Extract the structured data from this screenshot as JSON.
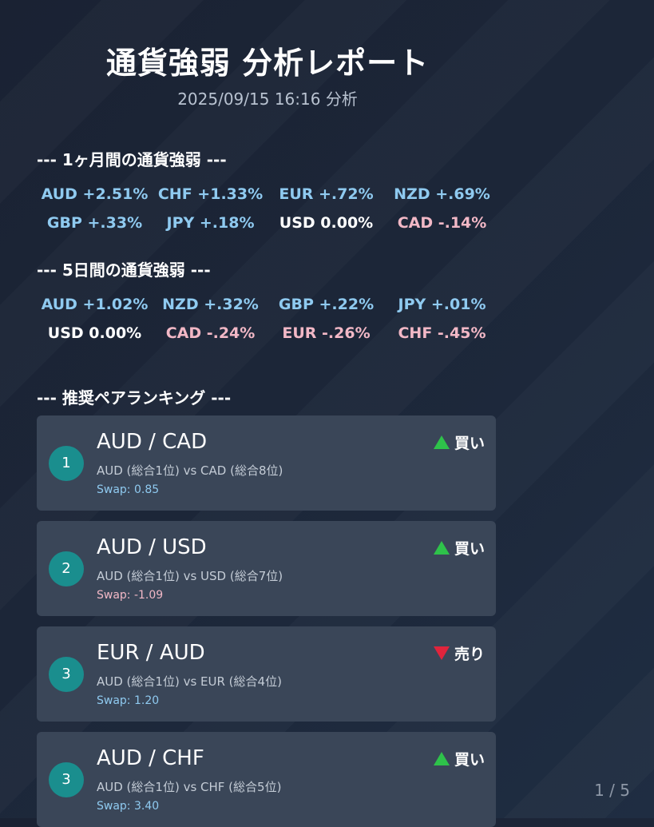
{
  "header": {
    "title": "通貨強弱 分析レポート",
    "timestamp": "2025/09/15 16:16 分析"
  },
  "strength_1m": {
    "heading": "--- 1ヶ月間の通貨強弱 ---",
    "items": [
      {
        "text": "AUD +2.51%",
        "tone": "pos"
      },
      {
        "text": "CHF +1.33%",
        "tone": "pos"
      },
      {
        "text": "EUR +.72%",
        "tone": "pos"
      },
      {
        "text": "NZD +.69%",
        "tone": "pos"
      },
      {
        "text": "GBP +.33%",
        "tone": "pos"
      },
      {
        "text": "JPY +.18%",
        "tone": "pos"
      },
      {
        "text": "USD 0.00%",
        "tone": "zero"
      },
      {
        "text": "CAD -.14%",
        "tone": "neg"
      }
    ]
  },
  "strength_5d": {
    "heading": "--- 5日間の通貨強弱 ---",
    "items": [
      {
        "text": "AUD +1.02%",
        "tone": "pos"
      },
      {
        "text": "NZD +.32%",
        "tone": "pos"
      },
      {
        "text": "GBP +.22%",
        "tone": "pos"
      },
      {
        "text": "JPY +.01%",
        "tone": "pos"
      },
      {
        "text": "USD 0.00%",
        "tone": "zero"
      },
      {
        "text": "CAD -.24%",
        "tone": "neg"
      },
      {
        "text": "EUR -.26%",
        "tone": "neg"
      },
      {
        "text": "CHF -.45%",
        "tone": "neg"
      }
    ]
  },
  "ranking": {
    "heading": "--- 推奨ペアランキング ---",
    "cards": [
      {
        "rank": "1",
        "pair": "AUD / CAD",
        "detail": "AUD (総合1位) vs CAD (総合8位)",
        "swap": "Swap: 0.85",
        "swap_tone": "pos",
        "signal": "買い",
        "direction": "up"
      },
      {
        "rank": "2",
        "pair": "AUD / USD",
        "detail": "AUD (総合1位) vs USD (総合7位)",
        "swap": "Swap: -1.09",
        "swap_tone": "neg",
        "signal": "買い",
        "direction": "up"
      },
      {
        "rank": "3",
        "pair": "EUR / AUD",
        "detail": "AUD (総合1位) vs EUR (総合4位)",
        "swap": "Swap: 1.20",
        "swap_tone": "pos",
        "signal": "売り",
        "direction": "down"
      },
      {
        "rank": "3",
        "pair": "AUD / CHF",
        "detail": "AUD (総合1位) vs CHF (総合5位)",
        "swap": "Swap: 3.40",
        "swap_tone": "pos",
        "signal": "買い",
        "direction": "up"
      }
    ]
  },
  "pager": {
    "label": "1 / 5"
  },
  "colors": {
    "positive": "#8fcaf0",
    "negative": "#f2b8c6",
    "rank_badge": "#1a8e8e",
    "buy_arrow": "#2ec24a",
    "sell_arrow": "#e0243c",
    "card_bg": "#3a4658"
  }
}
